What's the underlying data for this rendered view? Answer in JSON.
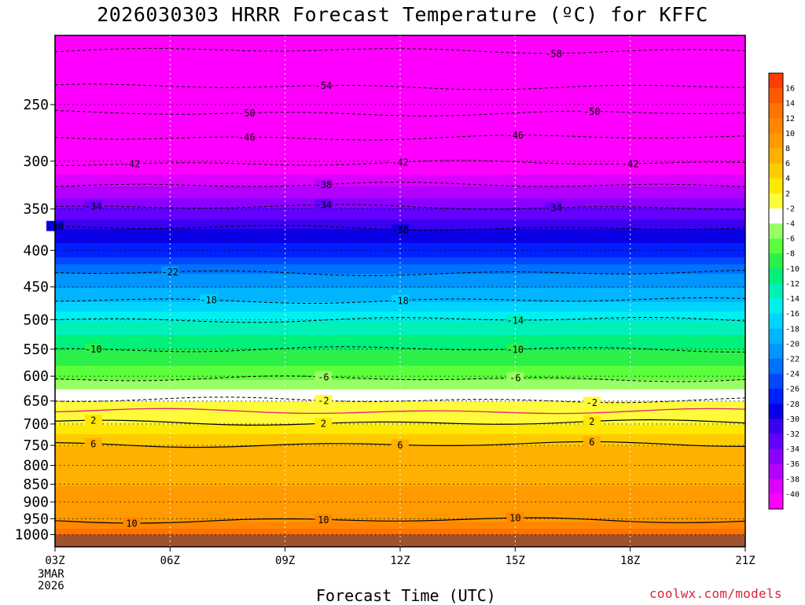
{
  "page": {
    "title": "2026030303 HRRR Forecast Temperature (ºC) for KFFC",
    "xlabel": "Forecast Time (UTC)",
    "date_line1": "3MAR",
    "date_line2": "2026",
    "credit": "coolwx.com/models"
  },
  "chart_data": {
    "type": "heatmap",
    "title": "2026030303 HRRR Forecast Temperature (ºC) for KFFC",
    "xlabel": "Forecast Time (UTC)",
    "ylabel": "",
    "x_ticks": [
      "03Z",
      "06Z",
      "09Z",
      "12Z",
      "15Z",
      "18Z",
      "21Z"
    ],
    "x_hours": [
      3,
      6,
      9,
      12,
      15,
      18,
      21
    ],
    "y_ticks": [
      250,
      300,
      350,
      400,
      450,
      500,
      550,
      600,
      650,
      700,
      750,
      800,
      850,
      900,
      950,
      1000
    ],
    "y_range_hpa": [
      200,
      1040
    ],
    "y_scale": "log",
    "ground_level_hpa": 1000,
    "colorbar_ticks": [
      16,
      14,
      12,
      10,
      8,
      6,
      4,
      2,
      -2,
      -4,
      -6,
      -8,
      -10,
      -12,
      -14,
      -16,
      -18,
      -20,
      -22,
      -24,
      -26,
      -28,
      -30,
      -32,
      -34,
      -36,
      -38,
      -40
    ],
    "colorbar_colors": [
      "#ff3d00",
      "#ff5a00",
      "#ff7300",
      "#ff8700",
      "#ff9a00",
      "#ffb000",
      "#ffcc00",
      "#ffe800",
      "#fffa3a",
      "#ffffff",
      "#9aff66",
      "#5cff3c",
      "#2bf04a",
      "#00f07a",
      "#00f0b8",
      "#00f0f0",
      "#00d4ff",
      "#00b4ff",
      "#0095ff",
      "#0070ff",
      "#0048ff",
      "#0020ff",
      "#0a00e6",
      "#3c00f0",
      "#6400ff",
      "#8c00ff",
      "#b400ff",
      "#dc00ff",
      "#ff00ff"
    ],
    "isotherms": [
      {
        "label": "-58",
        "pressure_hpa": 210,
        "style": "dashed"
      },
      {
        "label": "-54",
        "pressure_hpa": 236,
        "style": "dashed"
      },
      {
        "label": "-50",
        "pressure_hpa": 257,
        "style": "dashed"
      },
      {
        "label": "-46",
        "pressure_hpa": 278,
        "style": "dashed"
      },
      {
        "label": "-42",
        "pressure_hpa": 302,
        "style": "dashed"
      },
      {
        "label": "-38",
        "pressure_hpa": 324,
        "style": "dashed"
      },
      {
        "label": "-34",
        "pressure_hpa": 348,
        "style": "dashed"
      },
      {
        "label": "-30",
        "pressure_hpa": 372,
        "style": "dashed"
      },
      {
        "label": "-22",
        "pressure_hpa": 430,
        "style": "dashed"
      },
      {
        "label": "-18",
        "pressure_hpa": 470,
        "style": "dashed"
      },
      {
        "label": "-14",
        "pressure_hpa": 500,
        "style": "dashed"
      },
      {
        "label": "-10",
        "pressure_hpa": 550,
        "style": "dashed"
      },
      {
        "label": "-6",
        "pressure_hpa": 605,
        "style": "dashed"
      },
      {
        "label": "-2",
        "pressure_hpa": 648,
        "style": "dashed"
      },
      {
        "label": "0",
        "pressure_hpa": 672,
        "style": "freezing"
      },
      {
        "label": "2",
        "pressure_hpa": 697,
        "style": "solid"
      },
      {
        "label": "6",
        "pressure_hpa": 748,
        "style": "solid"
      },
      {
        "label": "10",
        "pressure_hpa": 955,
        "style": "solid"
      }
    ]
  }
}
